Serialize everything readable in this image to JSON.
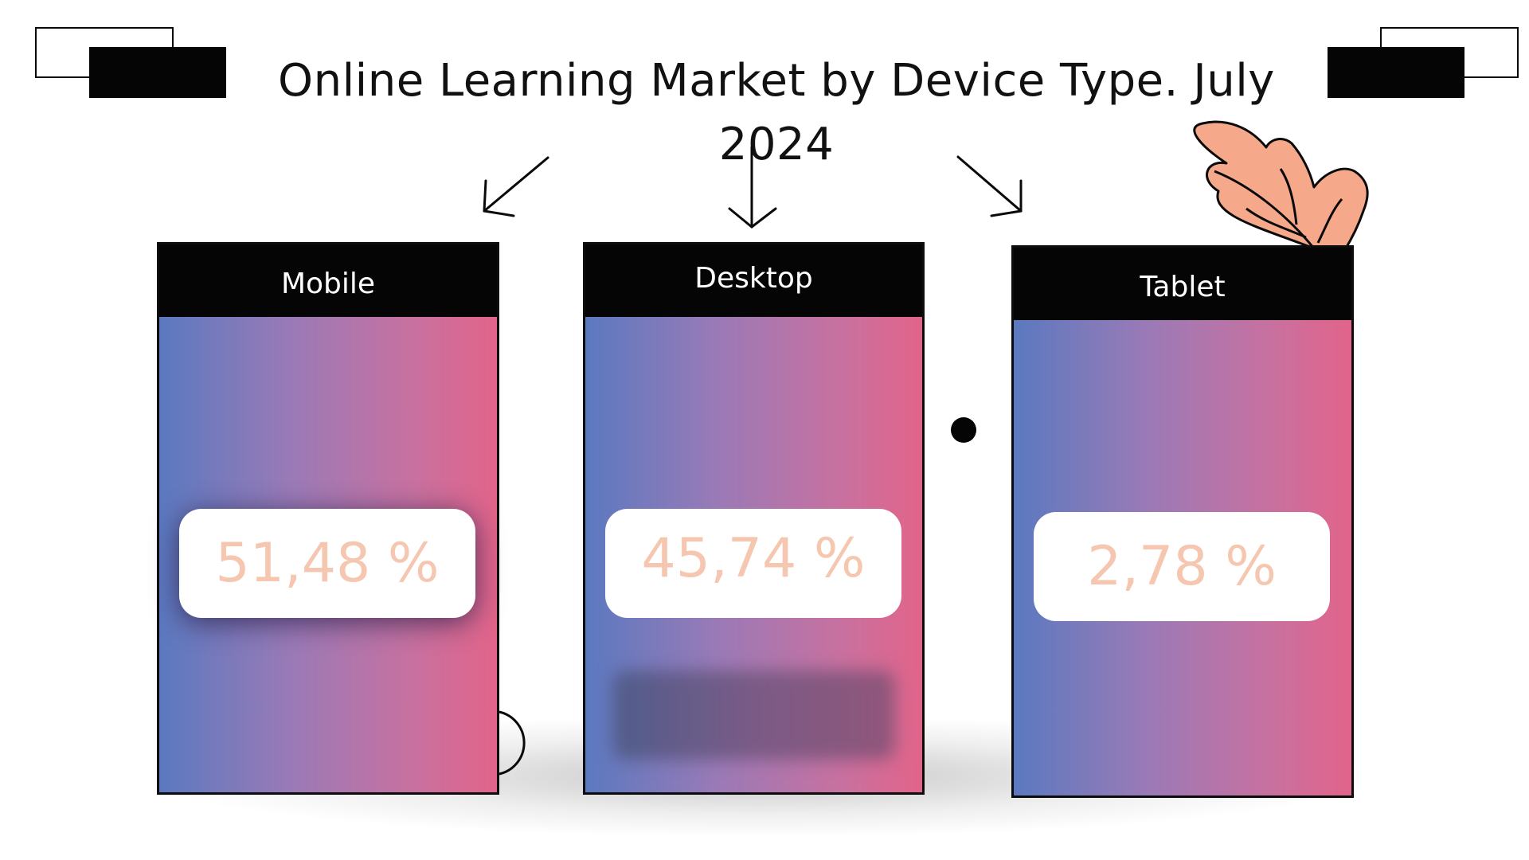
{
  "title": "Online Learning Market by Device Type. July 2024",
  "chart_data": {
    "type": "table",
    "title": "Online Learning Market by Device Type. July 2024",
    "categories": [
      "Mobile",
      "Desktop",
      "Tablet"
    ],
    "values": [
      51.48,
      45.74,
      2.78
    ],
    "value_labels": [
      "51,48 %",
      "45,74 %",
      "2,78 %"
    ],
    "unit": "%"
  },
  "colors": {
    "gradient_start": "#5b79c0",
    "gradient_mid": "#9b7ab6",
    "gradient_end": "#e2648a",
    "header": "#050505",
    "value_text": "#f6c7b0",
    "leaf": "#f5a98a"
  },
  "icons": [
    "arrow-down-left-icon",
    "arrow-down-icon",
    "arrow-down-right-icon",
    "leaf-icon",
    "dot-icon",
    "half-circle-icon"
  ]
}
